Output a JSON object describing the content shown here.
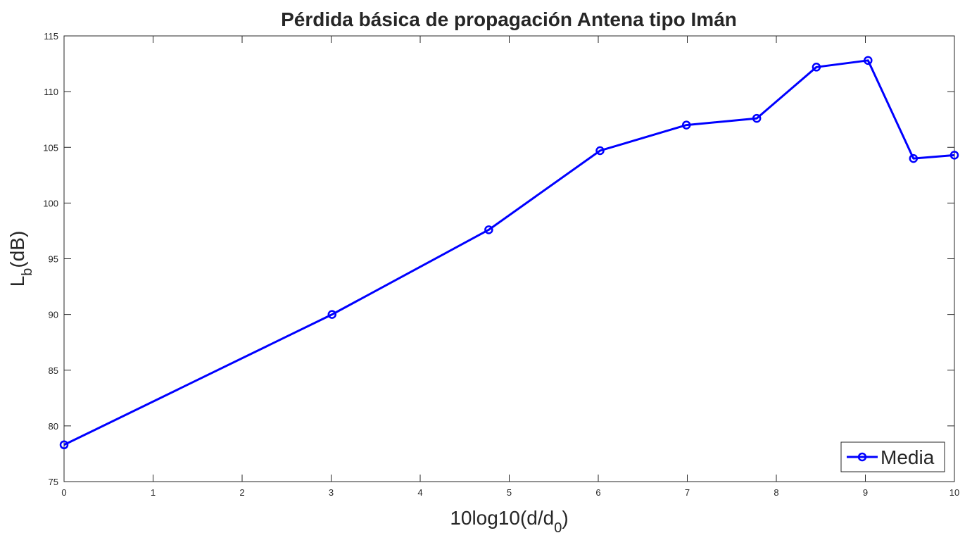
{
  "chart_data": {
    "type": "line",
    "title": "Pérdida básica de propagación Antena tipo Imán",
    "xlabel": [
      "10log10(d/d",
      "0",
      ")"
    ],
    "ylabel": [
      "L",
      "b",
      "(dB)"
    ],
    "x": [
      0,
      3.01,
      4.77,
      6.02,
      6.99,
      7.78,
      8.45,
      9.03,
      9.54,
      10
    ],
    "series": [
      {
        "name": "Media",
        "color": "#0000ff",
        "values": [
          78.3,
          90.0,
          97.6,
          104.7,
          107.0,
          107.6,
          112.2,
          112.8,
          104.0,
          104.3
        ]
      }
    ],
    "xlim": [
      0,
      10
    ],
    "xticks": [
      0,
      1,
      2,
      3,
      4,
      5,
      6,
      7,
      8,
      9,
      10
    ],
    "ylim": [
      75,
      115
    ],
    "yticks": [
      75,
      80,
      85,
      90,
      95,
      100,
      105,
      110,
      115
    ],
    "grid": false,
    "legend": "southeast",
    "marker": "circle"
  }
}
